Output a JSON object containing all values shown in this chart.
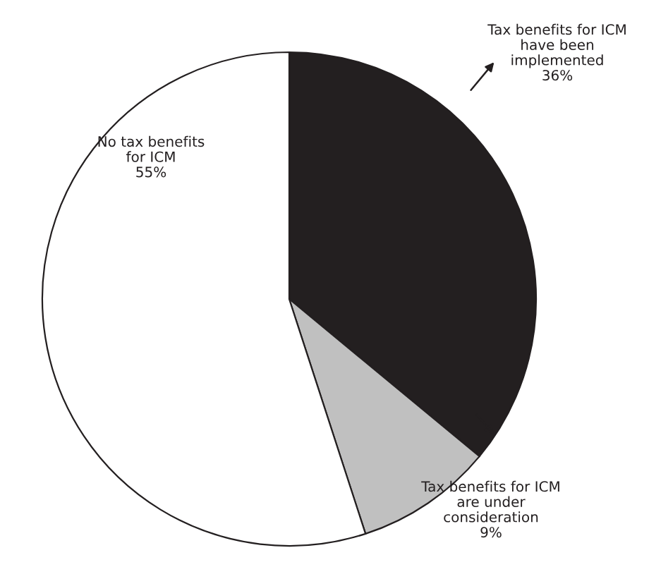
{
  "chart_data": {
    "type": "pie",
    "categories": [
      "Tax benefits for ICM\nhave been\nimplemented",
      "Tax benefits for ICM\nare under\nconsideration",
      "No tax benefits\nfor ICM"
    ],
    "values": [
      36,
      9,
      55
    ],
    "colors": [
      "#231f20",
      "#c0c0c0",
      "#ffffff"
    ],
    "value_labels": [
      "36%",
      "9%",
      "55%"
    ],
    "legend": false
  }
}
